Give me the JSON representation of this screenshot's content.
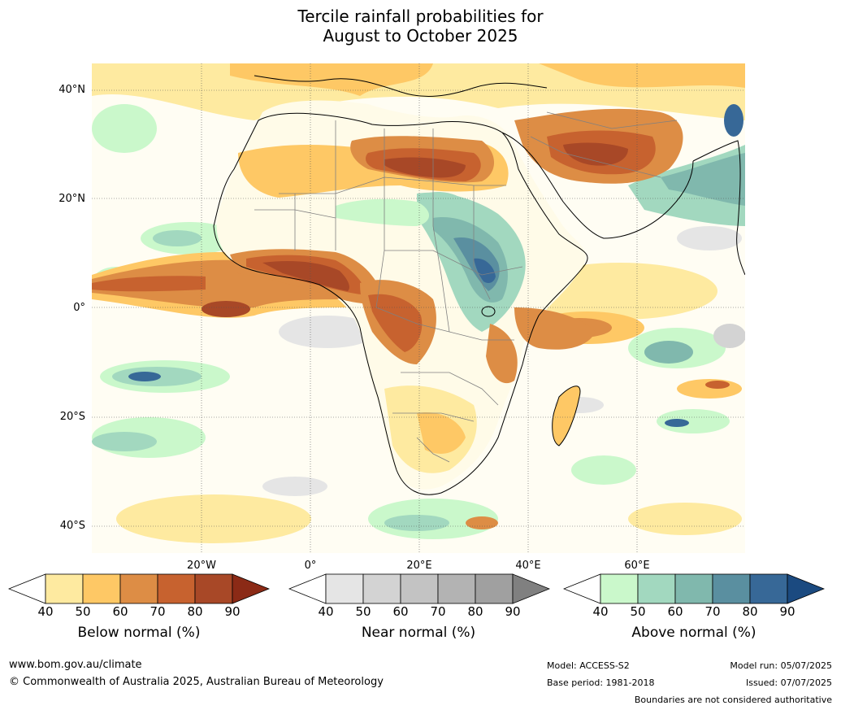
{
  "title_line1": "Tercile rainfall probabilities for",
  "title_line2": "August to October 2025",
  "lat_labels": [
    "40°N",
    "20°N",
    "0°",
    "20°S",
    "40°S"
  ],
  "lon_labels": [
    "20°W",
    "0°",
    "20°E",
    "40°E",
    "60°E"
  ],
  "colorbars": [
    {
      "name": "below",
      "title": "Below normal (%)",
      "ticks": [
        "40",
        "50",
        "60",
        "70",
        "80",
        "90"
      ],
      "colors": [
        "#ffffff",
        "#feeaa0",
        "#fec865",
        "#dd8d45",
        "#c7622f",
        "#a84827",
        "#8b2a16"
      ]
    },
    {
      "name": "near",
      "title": "Near normal (%)",
      "ticks": [
        "40",
        "50",
        "60",
        "70",
        "80",
        "90"
      ],
      "colors": [
        "#ffffff",
        "#e5e5e5",
        "#d3d3d3",
        "#c3c3c3",
        "#b3b3b3",
        "#a0a0a0",
        "#808080"
      ]
    },
    {
      "name": "above",
      "title": "Above normal (%)",
      "ticks": [
        "40",
        "50",
        "60",
        "70",
        "80",
        "90"
      ],
      "colors": [
        "#ffffff",
        "#caf8cb",
        "#a2d8bf",
        "#80b8ad",
        "#5a8fa0",
        "#376897",
        "#1b4a80"
      ]
    }
  ],
  "footer": {
    "website": "www.bom.gov.au/climate",
    "copyright": "© Commonwealth of Australia 2025, Australian Bureau of Meteorology",
    "model": "Model: ACCESS-S2",
    "base_period": "Base period: 1981-2018",
    "model_run": "Model run: 05/07/2025",
    "issued": "Issued: 07/07/2025",
    "disclaimer": "Boundaries are not considered authoritative"
  }
}
